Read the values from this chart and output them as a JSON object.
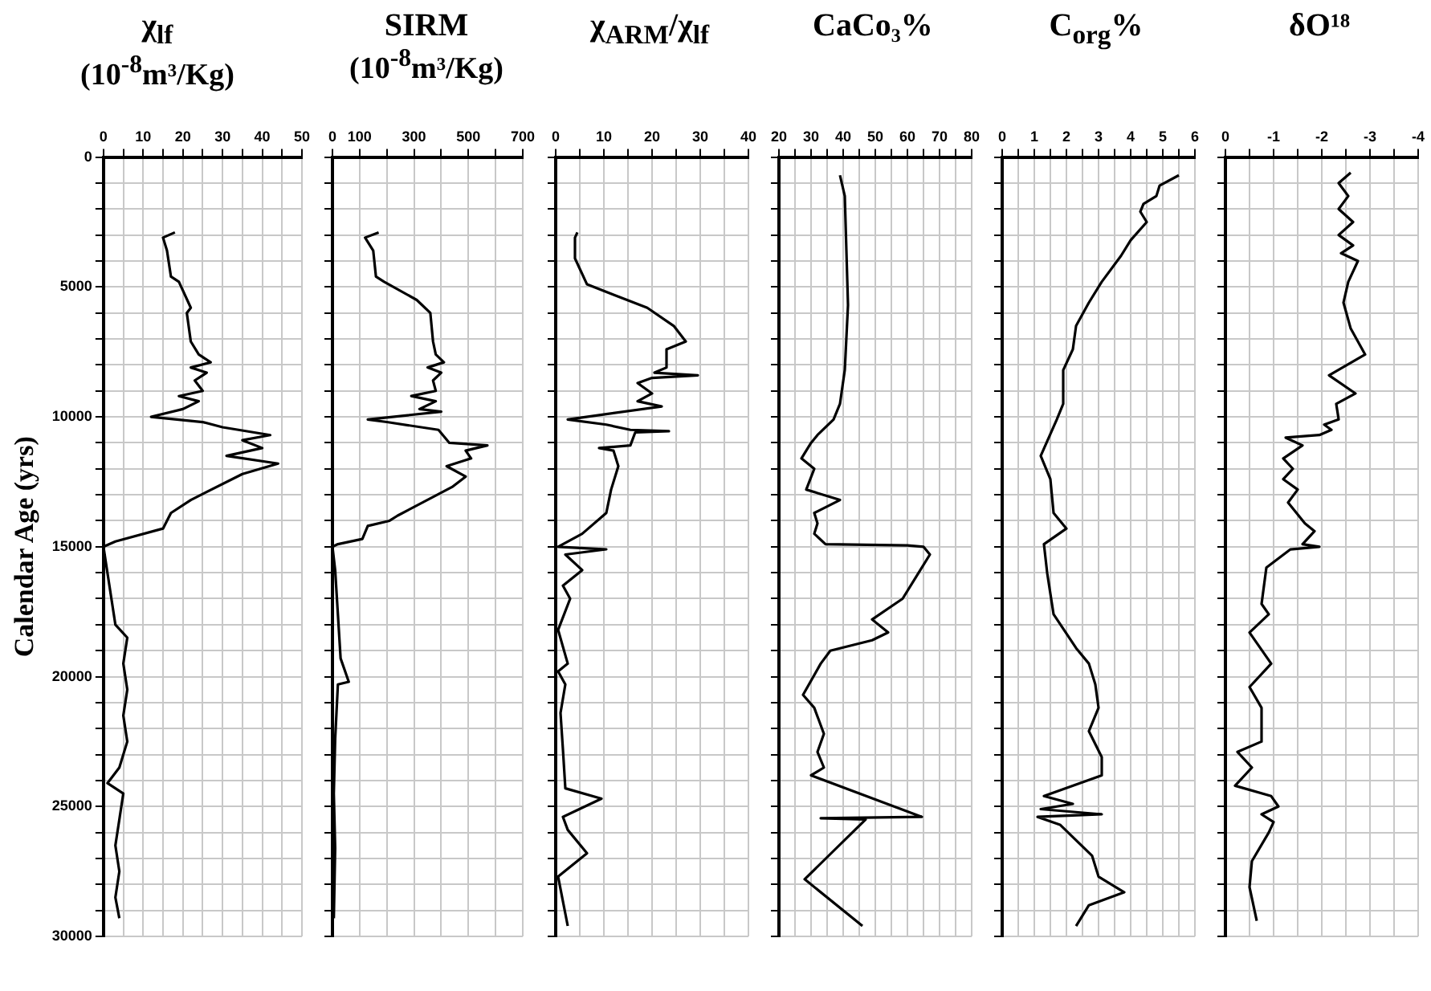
{
  "chart_data": [
    {
      "type": "line",
      "title": "χ$_{lf}$",
      "subtitle": "(10$^{-8}$m³/Kg)",
      "ylabel": "Calendar Age (yrs)",
      "grid": true,
      "xlim": [
        0,
        50
      ],
      "xticks": [
        0,
        {
          "value": 5,
          "label": null
        },
        10,
        {
          "value": 15,
          "label": null
        },
        20,
        {
          "value": 25,
          "label": null
        },
        30,
        {
          "value": 35,
          "label": null
        },
        40,
        {
          "value": 45,
          "label": null
        },
        50
      ],
      "ylim": [
        30000,
        0
      ],
      "yticks": [
        0,
        {
          "value": 1000,
          "label": null
        },
        {
          "value": 2000,
          "label": null
        },
        {
          "value": 3000,
          "label": null
        },
        {
          "value": 4000,
          "label": null
        },
        5000,
        {
          "value": 6000,
          "label": null
        },
        {
          "value": 7000,
          "label": null
        },
        {
          "value": 8000,
          "label": null
        },
        {
          "value": 9000,
          "label": null
        },
        10000,
        {
          "value": 11000,
          "label": null
        },
        {
          "value": 12000,
          "label": null
        },
        {
          "value": 13000,
          "label": null
        },
        {
          "value": 14000,
          "label": null
        },
        15000,
        {
          "value": 16000,
          "label": null
        },
        {
          "value": 17000,
          "label": null
        },
        {
          "value": 18000,
          "label": null
        },
        {
          "value": 19000,
          "label": null
        },
        20000,
        {
          "value": 21000,
          "label": null
        },
        {
          "value": 22000,
          "label": null
        },
        {
          "value": 23000,
          "label": null
        },
        {
          "value": 24000,
          "label": null
        },
        25000,
        {
          "value": 26000,
          "label": null
        },
        {
          "value": 27000,
          "label": null
        },
        {
          "value": 28000,
          "label": null
        },
        {
          "value": 29000,
          "label": null
        },
        30000
      ],
      "series": [
        {
          "color": "#000000",
          "x": [
            18,
            15,
            16,
            17,
            19,
            22,
            21,
            22,
            24,
            27,
            22,
            26,
            23,
            25,
            19,
            24,
            20,
            12,
            25,
            30,
            42,
            35,
            40,
            31,
            44,
            35,
            22,
            17,
            15,
            3,
            0,
            1,
            2,
            3,
            6,
            5,
            6,
            5,
            6,
            4,
            1,
            5,
            4,
            3,
            4,
            3,
            4
          ],
          "values": [
            2900,
            3100,
            3600,
            4600,
            4800,
            5800,
            6000,
            7100,
            7600,
            7900,
            8100,
            8300,
            8600,
            9000,
            9200,
            9400,
            9700,
            10000,
            10200,
            10400,
            10700,
            10900,
            11200,
            11500,
            11800,
            12200,
            13200,
            13700,
            14300,
            14800,
            15000,
            16000,
            17000,
            18000,
            18500,
            19500,
            20500,
            21500,
            22500,
            23500,
            24100,
            24500,
            25500,
            26500,
            27500,
            28500,
            29300
          ]
        }
      ]
    },
    {
      "type": "line",
      "title": "SIRM",
      "subtitle": "(10$^{-8}$m³/Kg)",
      "grid": true,
      "tick_labels": "x",
      "xlim": [
        0,
        700
      ],
      "xticks": [
        0,
        100,
        {
          "value": 200,
          "label": null
        },
        300,
        {
          "value": 400,
          "label": null
        },
        500,
        {
          "value": 600,
          "label": null
        },
        700
      ],
      "ylim": [
        30000,
        0
      ],
      "yticks": [
        0,
        {
          "value": 1000,
          "label": null
        },
        {
          "value": 2000,
          "label": null
        },
        {
          "value": 3000,
          "label": null
        },
        {
          "value": 4000,
          "label": null
        },
        5000,
        {
          "value": 6000,
          "label": null
        },
        {
          "value": 7000,
          "label": null
        },
        {
          "value": 8000,
          "label": null
        },
        {
          "value": 9000,
          "label": null
        },
        10000,
        {
          "value": 11000,
          "label": null
        },
        {
          "value": 12000,
          "label": null
        },
        {
          "value": 13000,
          "label": null
        },
        {
          "value": 14000,
          "label": null
        },
        15000,
        {
          "value": 16000,
          "label": null
        },
        {
          "value": 17000,
          "label": null
        },
        {
          "value": 18000,
          "label": null
        },
        {
          "value": 19000,
          "label": null
        },
        20000,
        {
          "value": 21000,
          "label": null
        },
        {
          "value": 22000,
          "label": null
        },
        {
          "value": 23000,
          "label": null
        },
        {
          "value": 24000,
          "label": null
        },
        25000,
        {
          "value": 26000,
          "label": null
        },
        {
          "value": 27000,
          "label": null
        },
        {
          "value": 28000,
          "label": null
        },
        {
          "value": 29000,
          "label": null
        },
        30000
      ],
      "series": [
        {
          "color": "#000000",
          "x": [
            170,
            120,
            150,
            160,
            190,
            310,
            360,
            370,
            380,
            410,
            350,
            400,
            370,
            380,
            290,
            380,
            320,
            400,
            130,
            200,
            390,
            430,
            570,
            490,
            510,
            420,
            490,
            440,
            240,
            210,
            130,
            110,
            20,
            0,
            10,
            20,
            30,
            60,
            20,
            10,
            5,
            10,
            5
          ],
          "values": [
            2900,
            3100,
            3600,
            4600,
            4800,
            5500,
            6000,
            7100,
            7600,
            7900,
            8100,
            8300,
            8600,
            9000,
            9200,
            9400,
            9700,
            9800,
            10100,
            10200,
            10500,
            11000,
            11100,
            11300,
            11600,
            11900,
            12300,
            12700,
            13800,
            14000,
            14200,
            14700,
            14900,
            15000,
            15900,
            17600,
            19300,
            20200,
            20300,
            22400,
            24500,
            26600,
            29300
          ]
        }
      ]
    },
    {
      "type": "line",
      "title": "χ$_{ARM}$/χ$_{lf}$",
      "grid": true,
      "tick_labels": "x",
      "xlim": [
        0,
        40
      ],
      "xticks": [
        0,
        {
          "value": 5,
          "label": null
        },
        10,
        {
          "value": 15,
          "label": null
        },
        20,
        {
          "value": 25,
          "label": null
        },
        30,
        {
          "value": 35,
          "label": null
        },
        40
      ],
      "ylim": [
        30000,
        0
      ],
      "yticks": [
        0,
        {
          "value": 1000,
          "label": null
        },
        {
          "value": 2000,
          "label": null
        },
        {
          "value": 3000,
          "label": null
        },
        {
          "value": 4000,
          "label": null
        },
        5000,
        {
          "value": 6000,
          "label": null
        },
        {
          "value": 7000,
          "label": null
        },
        {
          "value": 8000,
          "label": null
        },
        {
          "value": 9000,
          "label": null
        },
        10000,
        {
          "value": 11000,
          "label": null
        },
        {
          "value": 12000,
          "label": null
        },
        {
          "value": 13000,
          "label": null
        },
        {
          "value": 14000,
          "label": null
        },
        15000,
        {
          "value": 16000,
          "label": null
        },
        {
          "value": 17000,
          "label": null
        },
        {
          "value": 18000,
          "label": null
        },
        {
          "value": 19000,
          "label": null
        },
        20000,
        {
          "value": 21000,
          "label": null
        },
        {
          "value": 22000,
          "label": null
        },
        {
          "value": 23000,
          "label": null
        },
        {
          "value": 24000,
          "label": null
        },
        25000,
        {
          "value": 26000,
          "label": null
        },
        {
          "value": 27000,
          "label": null
        },
        {
          "value": 28000,
          "label": null
        },
        {
          "value": 29000,
          "label": null
        },
        30000
      ],
      "series": [
        {
          "color": "#000000",
          "x": [
            4.5,
            4,
            4,
            6.5,
            12,
            19,
            24.5,
            27,
            23,
            23,
            20.5,
            29.5,
            20,
            17,
            20,
            17,
            22,
            2.5,
            10.5,
            15.5,
            23.5,
            16.5,
            15.5,
            9,
            12,
            13,
            11.5,
            10.5,
            5.5,
            0.5,
            10.5,
            2,
            5.5,
            1.5,
            3,
            0.5,
            2.5,
            0.5,
            2,
            1,
            1.5,
            2,
            9.5,
            1.5,
            2.5,
            6.5,
            0.5,
            2.5
          ],
          "values": [
            2900,
            3100,
            3900,
            4900,
            5300,
            5800,
            6500,
            7100,
            7400,
            8100,
            8300,
            8400,
            8500,
            8700,
            9100,
            9400,
            9600,
            10100,
            10300,
            10500,
            10550,
            10600,
            11100,
            11200,
            11300,
            11900,
            12800,
            13700,
            14500,
            15000,
            15100,
            15300,
            15900,
            16500,
            17000,
            18200,
            19500,
            19800,
            20300,
            21400,
            22800,
            24300,
            24700,
            25400,
            25900,
            26800,
            27700,
            29600
          ]
        }
      ]
    },
    {
      "type": "line",
      "title": "CaCo₃%",
      "grid": true,
      "tick_labels": "x",
      "xlim": [
        20,
        80
      ],
      "xticks": [
        20,
        {
          "value": 25,
          "label": null
        },
        30,
        {
          "value": 35,
          "label": null
        },
        40,
        {
          "value": 45,
          "label": null
        },
        50,
        {
          "value": 55,
          "label": null
        },
        60,
        {
          "value": 65,
          "label": null
        },
        70,
        {
          "value": 75,
          "label": null
        },
        80
      ],
      "ylim": [
        30000,
        0
      ],
      "yticks": [
        0,
        {
          "value": 1000,
          "label": null
        },
        {
          "value": 2000,
          "label": null
        },
        {
          "value": 3000,
          "label": null
        },
        {
          "value": 4000,
          "label": null
        },
        5000,
        {
          "value": 6000,
          "label": null
        },
        {
          "value": 7000,
          "label": null
        },
        {
          "value": 8000,
          "label": null
        },
        {
          "value": 9000,
          "label": null
        },
        10000,
        {
          "value": 11000,
          "label": null
        },
        {
          "value": 12000,
          "label": null
        },
        {
          "value": 13000,
          "label": null
        },
        {
          "value": 14000,
          "label": null
        },
        15000,
        {
          "value": 16000,
          "label": null
        },
        {
          "value": 17000,
          "label": null
        },
        {
          "value": 18000,
          "label": null
        },
        {
          "value": 19000,
          "label": null
        },
        20000,
        {
          "value": 21000,
          "label": null
        },
        {
          "value": 22000,
          "label": null
        },
        {
          "value": 23000,
          "label": null
        },
        {
          "value": 24000,
          "label": null
        },
        25000,
        {
          "value": 26000,
          "label": null
        },
        {
          "value": 27000,
          "label": null
        },
        {
          "value": 28000,
          "label": null
        },
        {
          "value": 29000,
          "label": null
        },
        30000
      ],
      "series": [
        {
          "color": "#000000",
          "x": [
            39,
            40.5,
            41,
            41.5,
            40.5,
            39,
            37,
            32,
            30,
            27,
            31,
            28.5,
            39,
            31,
            32,
            31,
            34.5,
            60,
            65,
            67,
            63.5,
            58.5,
            49,
            54,
            49,
            36,
            33,
            27.5,
            31,
            34,
            32,
            34,
            30,
            64.5,
            33,
            47,
            28,
            46
          ],
          "values": [
            700,
            1500,
            3600,
            5700,
            8200,
            9500,
            10100,
            10700,
            11000,
            11600,
            12000,
            12800,
            13200,
            13700,
            14100,
            14500,
            14900,
            14950,
            15000,
            15300,
            16000,
            17000,
            17800,
            18300,
            18600,
            19000,
            19500,
            20700,
            21200,
            22200,
            22900,
            23500,
            23800,
            25400,
            25450,
            25500,
            27800,
            29600
          ]
        }
      ]
    },
    {
      "type": "line",
      "title": "C$_{org}$%",
      "grid": true,
      "tick_labels": "x",
      "xlim": [
        0,
        6
      ],
      "xticks": [
        0,
        {
          "value": 0.5,
          "label": null
        },
        1,
        {
          "value": 1.5,
          "label": null
        },
        2,
        {
          "value": 2.5,
          "label": null
        },
        3,
        {
          "value": 3.5,
          "label": null
        },
        4,
        {
          "value": 4.5,
          "label": null
        },
        5,
        {
          "value": 5.5,
          "label": null
        },
        6
      ],
      "ylim": [
        30000,
        0
      ],
      "yticks": [
        0,
        {
          "value": 1000,
          "label": null
        },
        {
          "value": 2000,
          "label": null
        },
        {
          "value": 3000,
          "label": null
        },
        {
          "value": 4000,
          "label": null
        },
        5000,
        {
          "value": 6000,
          "label": null
        },
        {
          "value": 7000,
          "label": null
        },
        {
          "value": 8000,
          "label": null
        },
        {
          "value": 9000,
          "label": null
        },
        10000,
        {
          "value": 11000,
          "label": null
        },
        {
          "value": 12000,
          "label": null
        },
        {
          "value": 13000,
          "label": null
        },
        {
          "value": 14000,
          "label": null
        },
        15000,
        {
          "value": 16000,
          "label": null
        },
        {
          "value": 17000,
          "label": null
        },
        {
          "value": 18000,
          "label": null
        },
        {
          "value": 19000,
          "label": null
        },
        20000,
        {
          "value": 21000,
          "label": null
        },
        {
          "value": 22000,
          "label": null
        },
        {
          "value": 23000,
          "label": null
        },
        {
          "value": 24000,
          "label": null
        },
        25000,
        {
          "value": 26000,
          "label": null
        },
        {
          "value": 27000,
          "label": null
        },
        {
          "value": 28000,
          "label": null
        },
        {
          "value": 29000,
          "label": null
        },
        30000
      ],
      "series": [
        {
          "color": "#000000",
          "x": [
            5.5,
            4.9,
            4.8,
            4.4,
            4.3,
            4.5,
            4,
            3.7,
            3.1,
            2.7,
            2.3,
            2.2,
            1.9,
            1.9,
            1.7,
            1.2,
            1.5,
            1.6,
            2,
            1.3,
            1.4,
            1.6,
            2.3,
            2.7,
            2.9,
            3,
            2.7,
            3.1,
            3.1,
            1.3,
            2.2,
            1.2,
            3.1,
            1.1,
            1.8,
            2.8,
            3,
            3.8,
            2.7,
            2.3
          ],
          "values": [
            700,
            1100,
            1500,
            1800,
            2100,
            2500,
            3200,
            3800,
            4800,
            5600,
            6500,
            7400,
            8200,
            9500,
            10100,
            11500,
            12400,
            13700,
            14300,
            14900,
            16000,
            17600,
            18900,
            19500,
            20300,
            21200,
            22100,
            23100,
            23800,
            24600,
            24900,
            25100,
            25300,
            25400,
            25700,
            26900,
            27700,
            28300,
            28800,
            29600
          ]
        }
      ]
    },
    {
      "type": "line",
      "title": "δO¹⁸",
      "grid": true,
      "tick_labels": "x",
      "xlim": [
        0,
        -4
      ],
      "xticks": [
        0,
        {
          "value": -0.5,
          "label": null
        },
        -1,
        {
          "value": -1.5,
          "label": null
        },
        -2,
        {
          "value": -2.5,
          "label": null
        },
        -3,
        {
          "value": -3.5,
          "label": null
        },
        -4
      ],
      "ylim": [
        30000,
        0
      ],
      "yticks": [
        0,
        {
          "value": 1000,
          "label": null
        },
        {
          "value": 2000,
          "label": null
        },
        {
          "value": 3000,
          "label": null
        },
        {
          "value": 4000,
          "label": null
        },
        5000,
        {
          "value": 6000,
          "label": null
        },
        {
          "value": 7000,
          "label": null
        },
        {
          "value": 8000,
          "label": null
        },
        {
          "value": 9000,
          "label": null
        },
        10000,
        {
          "value": 11000,
          "label": null
        },
        {
          "value": 12000,
          "label": null
        },
        {
          "value": 13000,
          "label": null
        },
        {
          "value": 14000,
          "label": null
        },
        15000,
        {
          "value": 16000,
          "label": null
        },
        {
          "value": 17000,
          "label": null
        },
        {
          "value": 18000,
          "label": null
        },
        {
          "value": 19000,
          "label": null
        },
        20000,
        {
          "value": 21000,
          "label": null
        },
        {
          "value": 22000,
          "label": null
        },
        {
          "value": 23000,
          "label": null
        },
        {
          "value": 24000,
          "label": null
        },
        25000,
        {
          "value": 26000,
          "label": null
        },
        {
          "value": 27000,
          "label": null
        },
        {
          "value": 28000,
          "label": null
        },
        {
          "value": 29000,
          "label": null
        },
        30000
      ],
      "series": [
        {
          "color": "#000000",
          "x": [
            -2.6,
            -2.35,
            -2.55,
            -2.35,
            -2.65,
            -2.35,
            -2.65,
            -2.4,
            -2.75,
            -2.55,
            -2.45,
            -2.6,
            -2.9,
            -2.15,
            -2.7,
            -2.3,
            -2.35,
            -2.05,
            -2.2,
            -1.95,
            -1.25,
            -1.6,
            -1.2,
            -1.4,
            -1.2,
            -1.5,
            -1.3,
            -1.65,
            -1.85,
            -1.6,
            -1.95,
            -1.35,
            -0.85,
            -0.75,
            -0.9,
            -0.5,
            -0.95,
            -0.5,
            -0.75,
            -0.75,
            -0.25,
            -0.55,
            -0.2,
            -0.95,
            -1.1,
            -0.75,
            -1,
            -0.9,
            -0.55,
            -0.5,
            -0.65
          ],
          "values": [
            600,
            1000,
            1500,
            2000,
            2500,
            3000,
            3400,
            3700,
            4000,
            4800,
            5600,
            6600,
            7600,
            8400,
            9100,
            9500,
            10100,
            10300,
            10500,
            10700,
            10800,
            11100,
            11600,
            12000,
            12400,
            12800,
            13300,
            14100,
            14400,
            14900,
            15000,
            15100,
            15800,
            17200,
            17600,
            18300,
            19500,
            20400,
            21200,
            22500,
            22900,
            23500,
            24200,
            24600,
            25000,
            25300,
            25600,
            26000,
            27100,
            28100,
            29400
          ]
        }
      ]
    }
  ]
}
